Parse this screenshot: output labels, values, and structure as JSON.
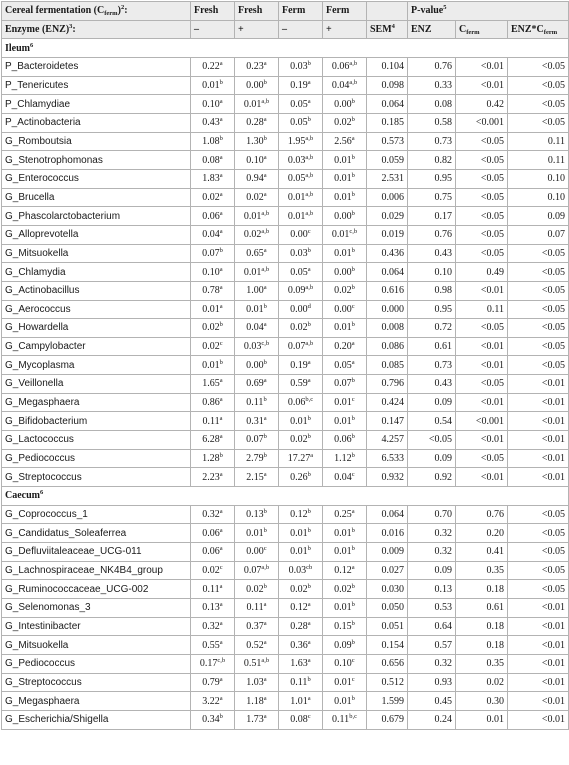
{
  "header": {
    "row1": [
      {
        "main": "Cereal fermentation (C",
        "sub": "ferm",
        "tail": ")",
        "sup": "2",
        "after": ":"
      },
      {
        "main": "Fresh"
      },
      {
        "main": "Fresh"
      },
      {
        "main": "Ferm"
      },
      {
        "main": "Ferm"
      },
      {
        "main": ""
      },
      {
        "main": "P-value",
        "sup": "5"
      }
    ],
    "row2": [
      {
        "main": "Enzyme (ENZ)",
        "sup": "3",
        "after": ":"
      },
      {
        "main": "–"
      },
      {
        "main": "+"
      },
      {
        "main": "–"
      },
      {
        "main": "+"
      },
      {
        "main": "SEM",
        "sup": "4"
      },
      {
        "main": "ENZ"
      },
      {
        "main": "C",
        "sub": "ferm"
      },
      {
        "main": "ENZ*C",
        "sub": "ferm"
      }
    ]
  },
  "sections": [
    {
      "title": "Ileum",
      "title_sup": "6",
      "rows": [
        {
          "name": "P_Bacteroidetes",
          "v": [
            [
              "0.22",
              "a"
            ],
            [
              "0.23",
              "a"
            ],
            [
              "0.03",
              "b"
            ],
            [
              "0.06",
              "a,b"
            ]
          ],
          "sem": "0.104",
          "p": [
            "0.76",
            "<0.01",
            "<0.05"
          ]
        },
        {
          "name": "P_Tenericutes",
          "v": [
            [
              "0.01",
              "b"
            ],
            [
              "0.00",
              "b"
            ],
            [
              "0.19",
              "a"
            ],
            [
              "0.04",
              "a,b"
            ]
          ],
          "sem": "0.098",
          "p": [
            "0.33",
            "<0.01",
            "<0.05"
          ]
        },
        {
          "name": "P_Chlamydiae",
          "v": [
            [
              "0.10",
              "a"
            ],
            [
              "0.01",
              "a,b"
            ],
            [
              "0.05",
              "a"
            ],
            [
              "0.00",
              "b"
            ]
          ],
          "sem": "0.064",
          "p": [
            "0.08",
            "0.42",
            "<0.05"
          ]
        },
        {
          "name": "P_Actinobacteria",
          "v": [
            [
              "0.43",
              "a"
            ],
            [
              "0.28",
              "a"
            ],
            [
              "0.05",
              "b"
            ],
            [
              "0.02",
              "b"
            ]
          ],
          "sem": "0.185",
          "p": [
            "0.58",
            "<0.001",
            "<0.05"
          ]
        },
        {
          "name": "G_Romboutsia",
          "v": [
            [
              "1.08",
              "b"
            ],
            [
              "1.30",
              "b"
            ],
            [
              "1.95",
              "a,b"
            ],
            [
              "2.56",
              "a"
            ]
          ],
          "sem": "0.573",
          "p": [
            "0.73",
            "<0.05",
            "0.11"
          ]
        },
        {
          "name": "G_Stenotrophomonas",
          "v": [
            [
              "0.08",
              "a"
            ],
            [
              "0.10",
              "a"
            ],
            [
              "0.03",
              "a,b"
            ],
            [
              "0.01",
              "b"
            ]
          ],
          "sem": "0.059",
          "p": [
            "0.82",
            "<0.05",
            "0.11"
          ]
        },
        {
          "name": "G_Enterococcus",
          "v": [
            [
              "1.83",
              "a"
            ],
            [
              "0.94",
              "a"
            ],
            [
              "0.05",
              "a,b"
            ],
            [
              "0.01",
              "b"
            ]
          ],
          "sem": "2.531",
          "p": [
            "0.95",
            "<0.05",
            "0.10"
          ]
        },
        {
          "name": "G_Brucella",
          "v": [
            [
              "0.02",
              "a"
            ],
            [
              "0.02",
              "a"
            ],
            [
              "0.01",
              "a,b"
            ],
            [
              "0.01",
              "b"
            ]
          ],
          "sem": "0.006",
          "p": [
            "0.75",
            "<0.05",
            "0.10"
          ]
        },
        {
          "name": "G_Phascolarctobacterium",
          "v": [
            [
              "0.06",
              "a"
            ],
            [
              "0.01",
              "a,b"
            ],
            [
              "0.01",
              "a,b"
            ],
            [
              "0.00",
              "b"
            ]
          ],
          "sem": "0.029",
          "p": [
            "0.17",
            "<0.05",
            "0.09"
          ]
        },
        {
          "name": "G_Alloprevotella",
          "v": [
            [
              "0.04",
              "a"
            ],
            [
              "0.02",
              "a,b"
            ],
            [
              "0.00",
              "c"
            ],
            [
              "0.01",
              "c,b"
            ]
          ],
          "sem": "0.019",
          "p": [
            "0.76",
            "<0.05",
            "0.07"
          ]
        },
        {
          "name": "G_Mitsuokella",
          "v": [
            [
              "0.07",
              "b"
            ],
            [
              "0.65",
              "a"
            ],
            [
              "0.03",
              "b"
            ],
            [
              "0.01",
              "b"
            ]
          ],
          "sem": "0.436",
          "p": [
            "0.43",
            "<0.05",
            "<0.05"
          ]
        },
        {
          "name": "G_Chlamydia",
          "v": [
            [
              "0.10",
              "a"
            ],
            [
              "0.01",
              "a,b"
            ],
            [
              "0.05",
              "a"
            ],
            [
              "0.00",
              "b"
            ]
          ],
          "sem": "0.064",
          "p": [
            "0.10",
            "0.49",
            "<0.05"
          ]
        },
        {
          "name": "G_Actinobacillus",
          "v": [
            [
              "0.78",
              "a"
            ],
            [
              "1.00",
              "a"
            ],
            [
              "0.09",
              "a,b"
            ],
            [
              "0.02",
              "b"
            ]
          ],
          "sem": "0.616",
          "p": [
            "0.98",
            "<0.01",
            "<0.05"
          ]
        },
        {
          "name": "G_Aerococcus",
          "v": [
            [
              "0.01",
              "a"
            ],
            [
              "0.01",
              "b"
            ],
            [
              "0.00",
              "d"
            ],
            [
              "0.00",
              "c"
            ]
          ],
          "sem": "0.000",
          "p": [
            "0.95",
            "0.11",
            "<0.05"
          ]
        },
        {
          "name": "G_Howardella",
          "v": [
            [
              "0.02",
              "b"
            ],
            [
              "0.04",
              "a"
            ],
            [
              "0.02",
              "b"
            ],
            [
              "0.01",
              "b"
            ]
          ],
          "sem": "0.008",
          "p": [
            "0.72",
            "<0.05",
            "<0.05"
          ]
        },
        {
          "name": "G_Campylobacter",
          "v": [
            [
              "0.02",
              "c"
            ],
            [
              "0.03",
              "c,b"
            ],
            [
              "0.07",
              "a,b"
            ],
            [
              "0.20",
              "a"
            ]
          ],
          "sem": "0.086",
          "p": [
            "0.61",
            "<0.01",
            "<0.05"
          ]
        },
        {
          "name": "G_Mycoplasma",
          "v": [
            [
              "0.01",
              "b"
            ],
            [
              "0.00",
              "b"
            ],
            [
              "0.19",
              "a"
            ],
            [
              "0.05",
              "a"
            ]
          ],
          "sem": "0.085",
          "p": [
            "0.73",
            "<0.01",
            "<0.05"
          ]
        },
        {
          "name": "G_Veillonella",
          "v": [
            [
              "1.65",
              "a"
            ],
            [
              "0.69",
              "a"
            ],
            [
              "0.59",
              "a"
            ],
            [
              "0.07",
              "b"
            ]
          ],
          "sem": "0.796",
          "p": [
            "0.43",
            "<0.05",
            "<0.01"
          ]
        },
        {
          "name": "G_Megasphaera",
          "v": [
            [
              "0.86",
              "a"
            ],
            [
              "0.11",
              "b"
            ],
            [
              "0.06",
              "b,c"
            ],
            [
              "0.01",
              "c"
            ]
          ],
          "sem": "0.424",
          "p": [
            "0.09",
            "<0.01",
            "<0.01"
          ]
        },
        {
          "name": "G_Bifidobacterium",
          "v": [
            [
              "0.11",
              "a"
            ],
            [
              "0.31",
              "a"
            ],
            [
              "0.01",
              "b"
            ],
            [
              "0.01",
              "b"
            ]
          ],
          "sem": "0.147",
          "p": [
            "0.54",
            "<0.001",
            "<0.01"
          ]
        },
        {
          "name": "G_Lactococcus",
          "v": [
            [
              "6.28",
              "a"
            ],
            [
              "0.07",
              "b"
            ],
            [
              "0.02",
              "b"
            ],
            [
              "0.06",
              "b"
            ]
          ],
          "sem": "4.257",
          "p": [
            "<0.05",
            "<0.01",
            "<0.01"
          ]
        },
        {
          "name": "G_Pediococcus",
          "v": [
            [
              "1.28",
              "b"
            ],
            [
              "2.79",
              "b"
            ],
            [
              "17.27",
              "a"
            ],
            [
              "1.12",
              "b"
            ]
          ],
          "sem": "6.533",
          "p": [
            "0.09",
            "<0.05",
            "<0.01"
          ]
        },
        {
          "name": "G_Streptococcus",
          "v": [
            [
              "2.23",
              "a"
            ],
            [
              "2.15",
              "a"
            ],
            [
              "0.26",
              "b"
            ],
            [
              "0.04",
              "c"
            ]
          ],
          "sem": "0.932",
          "p": [
            "0.92",
            "<0.01",
            "<0.01"
          ]
        }
      ]
    },
    {
      "title": "Caecum",
      "title_sup": "6",
      "rows": [
        {
          "name": "G_Coprococcus_1",
          "v": [
            [
              "0.32",
              "a"
            ],
            [
              "0.13",
              "b"
            ],
            [
              "0.12",
              "b"
            ],
            [
              "0.25",
              "a"
            ]
          ],
          "sem": "0.064",
          "p": [
            "0.70",
            "0.76",
            "<0.05"
          ]
        },
        {
          "name": "G_Candidatus_Soleaferrea",
          "v": [
            [
              "0.06",
              "a"
            ],
            [
              "0.01",
              "b"
            ],
            [
              "0.01",
              "b"
            ],
            [
              "0.01",
              "b"
            ]
          ],
          "sem": "0.016",
          "p": [
            "0.32",
            "0.20",
            "<0.05"
          ]
        },
        {
          "name": "G_Defluviitaleaceae_UCG-011",
          "v": [
            [
              "0.06",
              "a"
            ],
            [
              "0.00",
              "c"
            ],
            [
              "0.01",
              "b"
            ],
            [
              "0.01",
              "b"
            ]
          ],
          "sem": "0.009",
          "p": [
            "0.32",
            "0.41",
            "<0.05"
          ]
        },
        {
          "name": "G_Lachnospiraceae_NK4B4_group",
          "v": [
            [
              "0.02",
              "c"
            ],
            [
              "0.07",
              "a,b"
            ],
            [
              "0.03",
              "cb"
            ],
            [
              "0.12",
              "a"
            ]
          ],
          "sem": "0.027",
          "p": [
            "0.09",
            "0.35",
            "<0.05"
          ]
        },
        {
          "name": "G_Ruminococcaceae_UCG-002",
          "v": [
            [
              "0.11",
              "a"
            ],
            [
              "0.02",
              "b"
            ],
            [
              "0.02",
              "b"
            ],
            [
              "0.02",
              "b"
            ]
          ],
          "sem": "0.030",
          "p": [
            "0.13",
            "0.18",
            "<0.05"
          ]
        },
        {
          "name": "G_Selenomonas_3",
          "v": [
            [
              "0.13",
              "a"
            ],
            [
              "0.11",
              "a"
            ],
            [
              "0.12",
              "a"
            ],
            [
              "0.01",
              "b"
            ]
          ],
          "sem": "0.050",
          "p": [
            "0.53",
            "0.61",
            "<0.01"
          ]
        },
        {
          "name": "G_Intestinibacter",
          "v": [
            [
              "0.32",
              "a"
            ],
            [
              "0.37",
              "a"
            ],
            [
              "0.28",
              "a"
            ],
            [
              "0.15",
              "b"
            ]
          ],
          "sem": "0.051",
          "p": [
            "0.64",
            "0.18",
            "<0.01"
          ]
        },
        {
          "name": "G_Mitsuokella",
          "v": [
            [
              "0.55",
              "a"
            ],
            [
              "0.52",
              "a"
            ],
            [
              "0.36",
              "a"
            ],
            [
              "0.09",
              "b"
            ]
          ],
          "sem": "0.154",
          "p": [
            "0.57",
            "0.18",
            "<0.01"
          ]
        },
        {
          "name": "G_Pediococcus",
          "v": [
            [
              "0.17",
              "c,b"
            ],
            [
              "0.51",
              "a,b"
            ],
            [
              "1.63",
              "a"
            ],
            [
              "0.10",
              "c"
            ]
          ],
          "sem": "0.656",
          "p": [
            "0.32",
            "0.35",
            "<0.01"
          ]
        },
        {
          "name": "G_Streptococcus",
          "v": [
            [
              "0.79",
              "a"
            ],
            [
              "1.03",
              "a"
            ],
            [
              "0.11",
              "b"
            ],
            [
              "0.01",
              "c"
            ]
          ],
          "sem": "0.512",
          "p": [
            "0.93",
            "0.02",
            "<0.01"
          ]
        },
        {
          "name": "G_Megasphaera",
          "v": [
            [
              "3.22",
              "a"
            ],
            [
              "1.18",
              "a"
            ],
            [
              "1.01",
              "a"
            ],
            [
              "0.01",
              "b"
            ]
          ],
          "sem": "1.599",
          "p": [
            "0.45",
            "0.30",
            "<0.01"
          ]
        },
        {
          "name": "G_Escherichia/Shigella",
          "v": [
            [
              "0.34",
              "b"
            ],
            [
              "1.73",
              "a"
            ],
            [
              "0.08",
              "c"
            ],
            [
              "0.11",
              "b,c"
            ]
          ],
          "sem": "0.679",
          "p": [
            "0.24",
            "0.01",
            "<0.01"
          ]
        }
      ]
    }
  ]
}
